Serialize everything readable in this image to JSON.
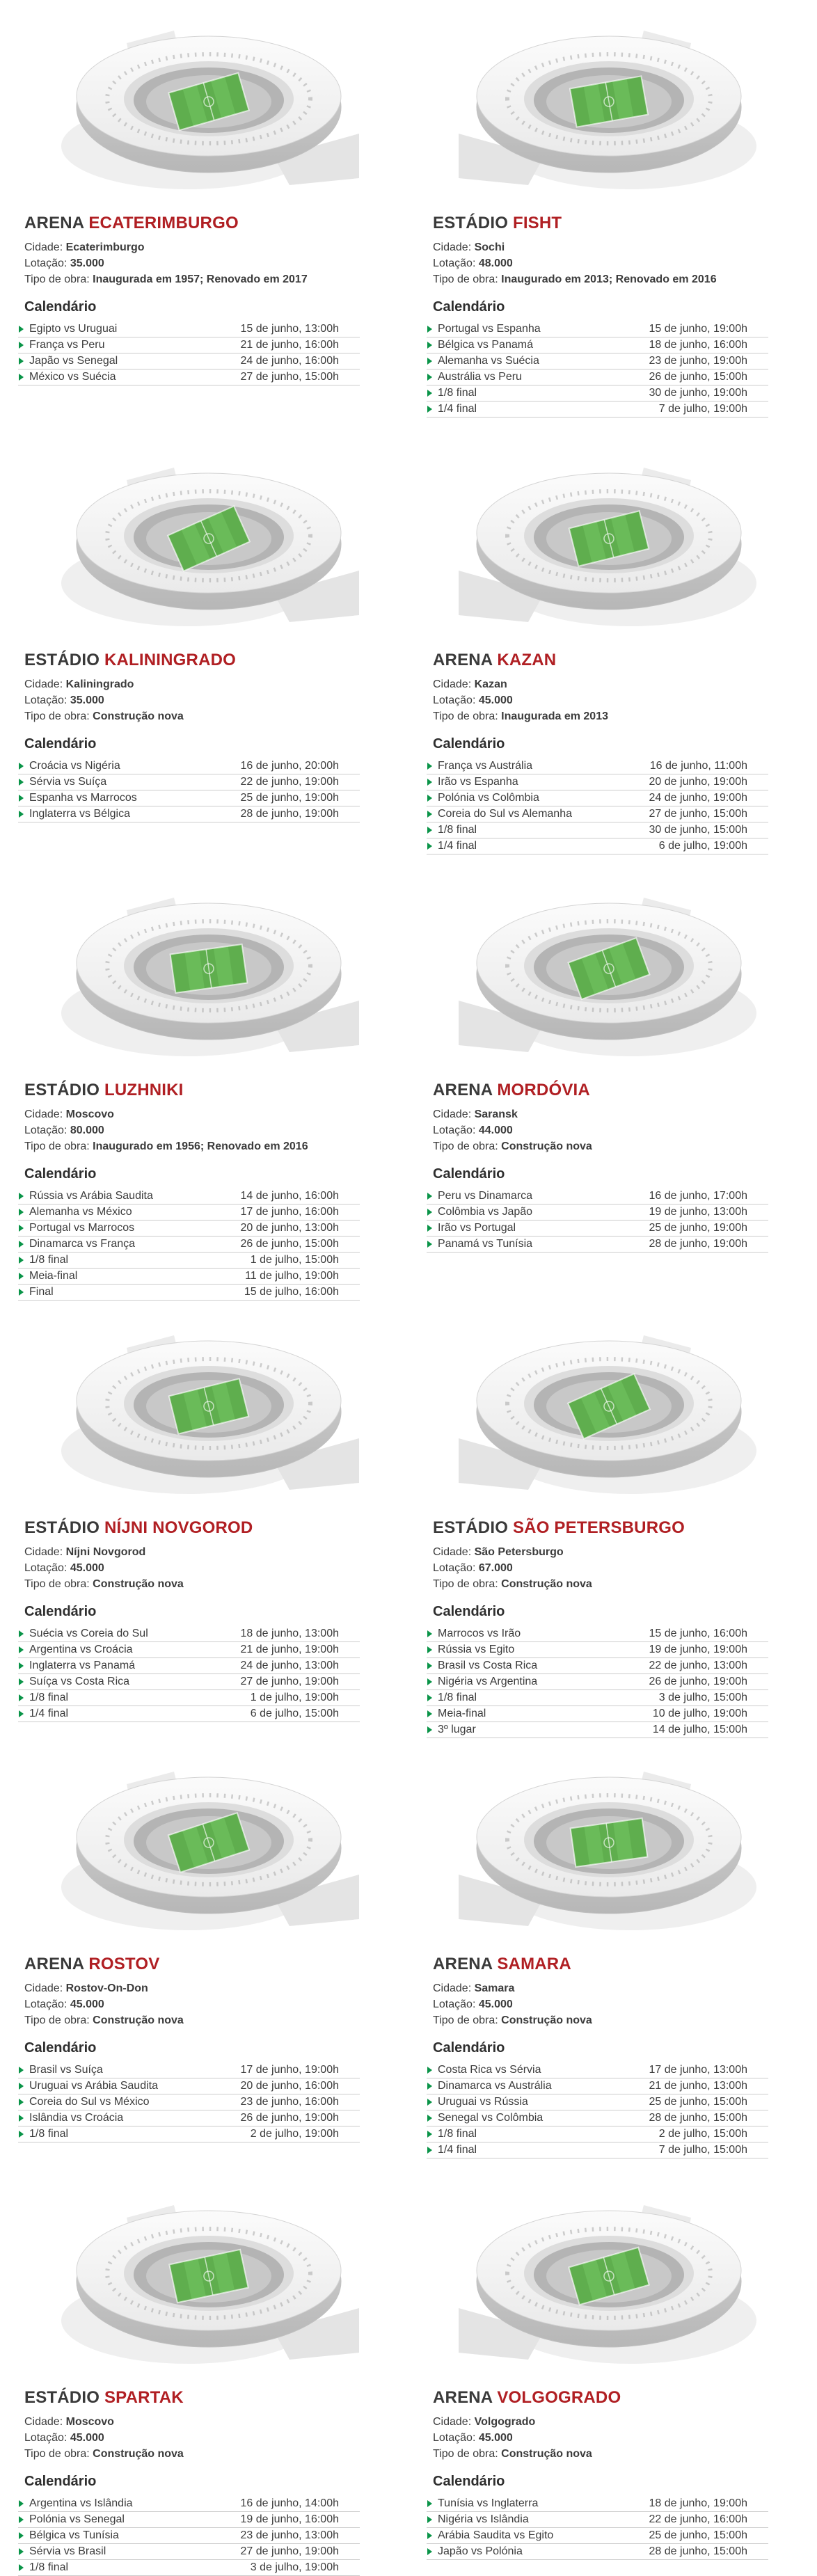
{
  "labels": {
    "city": "Cidade:",
    "capacity": "Lotação:",
    "construction": "Tipo de obra:",
    "calendar": "Calendário"
  },
  "colors": {
    "accent_red": "#b01f23",
    "title_dark": "#3a3a3a",
    "body_text": "#3c3c3c",
    "arrow_green": "#0a9448",
    "divider_gray": "#cccccc",
    "pitch_green": "#5fae4e",
    "stadium_gray": "#d9d9d9",
    "background": "#ffffff"
  },
  "stadiums": [
    {
      "prefix": "ARENA",
      "name": "ECATERIMBURGO",
      "city": "Ecaterimburgo",
      "capacity": "35.000",
      "construction": "Inaugurada em 1957; Renovado em 2017",
      "matches": [
        {
          "match": "Egipto vs Uruguai",
          "date": "15 de junho, 13:00h"
        },
        {
          "match": "França vs Peru",
          "date": "21 de junho, 16:00h"
        },
        {
          "match": "Japão vs Senegal",
          "date": "24 de junho, 16:00h"
        },
        {
          "match": "México vs Suécia",
          "date": "27 de junho, 15:00h"
        }
      ]
    },
    {
      "prefix": "ESTÁDIO",
      "name": "FISHT",
      "city": "Sochi",
      "capacity": "48.000",
      "construction": "Inaugurado em 2013; Renovado em 2016",
      "matches": [
        {
          "match": "Portugal vs Espanha",
          "date": "15 de junho, 19:00h"
        },
        {
          "match": "Bélgica vs Panamá",
          "date": "18 de junho, 16:00h"
        },
        {
          "match": "Alemanha vs Suécia",
          "date": "23 de junho, 19:00h"
        },
        {
          "match": "Austrália vs Peru",
          "date": "26 de junho, 15:00h"
        },
        {
          "match": "1/8 final",
          "date": "30 de junho, 19:00h"
        },
        {
          "match": "1/4 final",
          "date": "7 de julho, 19:00h"
        }
      ]
    },
    {
      "prefix": "ESTÁDIO",
      "name": "KALININGRADO",
      "city": "Kaliningrado",
      "capacity": "35.000",
      "construction": "Construção nova",
      "matches": [
        {
          "match": "Croácia vs Nigéria",
          "date": "16 de junho, 20:00h"
        },
        {
          "match": "Sérvia vs Suíça",
          "date": "22 de junho, 19:00h"
        },
        {
          "match": "Espanha vs Marrocos",
          "date": "25 de junho, 19:00h"
        },
        {
          "match": "Inglaterra vs Bélgica",
          "date": "28 de junho, 19:00h"
        }
      ]
    },
    {
      "prefix": "ARENA",
      "name": "KAZAN",
      "city": "Kazan",
      "capacity": "45.000",
      "construction": "Inaugurada em 2013",
      "matches": [
        {
          "match": "França vs Austrália",
          "date": "16 de junho, 11:00h"
        },
        {
          "match": "Irão vs Espanha",
          "date": "20 de junho, 19:00h"
        },
        {
          "match": "Polónia vs Colômbia",
          "date": "24 de junho, 19:00h"
        },
        {
          "match": "Coreia do Sul vs Alemanha",
          "date": "27 de junho, 15:00h"
        },
        {
          "match": "1/8 final",
          "date": "30 de junho, 15:00h"
        },
        {
          "match": "1/4 final",
          "date": "6 de julho, 19:00h"
        }
      ]
    },
    {
      "prefix": "ESTÁDIO",
      "name": "LUZHNIKI",
      "city": "Moscovo",
      "capacity": "80.000",
      "construction": "Inaugurado em 1956; Renovado em 2016",
      "matches": [
        {
          "match": "Rússia vs Arábia Saudita",
          "date": "14 de junho, 16:00h"
        },
        {
          "match": "Alemanha vs México",
          "date": "17 de junho, 16:00h"
        },
        {
          "match": "Portugal vs Marrocos",
          "date": "20 de junho, 13:00h"
        },
        {
          "match": "Dinamarca vs França",
          "date": "26 de junho, 15:00h"
        },
        {
          "match": "1/8 final",
          "date": "1 de julho, 15:00h"
        },
        {
          "match": "Meia-final",
          "date": "11 de julho, 19:00h"
        },
        {
          "match": "Final",
          "date": "15 de julho, 16:00h"
        }
      ]
    },
    {
      "prefix": "ARENA",
      "name": "MORDÓVIA",
      "city": "Saransk",
      "capacity": "44.000",
      "construction": "Construção nova",
      "matches": [
        {
          "match": "Peru vs Dinamarca",
          "date": "16 de junho, 17:00h"
        },
        {
          "match": "Colômbia vs Japão",
          "date": "19 de junho, 13:00h"
        },
        {
          "match": "Irão vs Portugal",
          "date": "25 de junho, 19:00h"
        },
        {
          "match": "Panamá vs Tunísia",
          "date": "28 de junho, 19:00h"
        }
      ]
    },
    {
      "prefix": "ESTÁDIO",
      "name": "NÍJNI NOVGOROD",
      "city": "Níjni Novgorod",
      "capacity": "45.000",
      "construction": "Construção nova",
      "matches": [
        {
          "match": "Suécia vs Coreia do Sul",
          "date": "18 de junho, 13:00h"
        },
        {
          "match": "Argentina vs Croácia",
          "date": "21 de junho, 19:00h"
        },
        {
          "match": "Inglaterra vs Panamá",
          "date": "24 de junho, 13:00h"
        },
        {
          "match": "Suíça vs Costa Rica",
          "date": "27 de junho, 19:00h"
        },
        {
          "match": "1/8 final",
          "date": "1 de julho, 19:00h"
        },
        {
          "match": "1/4 final",
          "date": "6 de julho, 15:00h"
        }
      ]
    },
    {
      "prefix": "ESTÁDIO",
      "name": "SÃO PETERSBURGO",
      "city": "São Petersburgo",
      "capacity": "67.000",
      "construction": "Construção nova",
      "matches": [
        {
          "match": "Marrocos vs Irão",
          "date": "15 de junho, 16:00h"
        },
        {
          "match": "Rússia vs Egito",
          "date": "19 de junho, 19:00h"
        },
        {
          "match": "Brasil vs Costa Rica",
          "date": "22 de junho, 13:00h"
        },
        {
          "match": "Nigéria vs Argentina",
          "date": "26 de junho, 19:00h"
        },
        {
          "match": "1/8 final",
          "date": "3 de julho, 15:00h"
        },
        {
          "match": "Meia-final",
          "date": "10 de julho, 19:00h"
        },
        {
          "match": "3º lugar",
          "date": "14 de julho, 15:00h"
        }
      ]
    },
    {
      "prefix": "ARENA",
      "name": "ROSTOV",
      "city": "Rostov-On-Don",
      "capacity": "45.000",
      "construction": "Construção nova",
      "matches": [
        {
          "match": "Brasil vs Suíça",
          "date": "17 de junho, 19:00h"
        },
        {
          "match": "Uruguai vs Arábia Saudita",
          "date": "20 de junho, 16:00h"
        },
        {
          "match": "Coreia do Sul vs México",
          "date": "23 de junho, 16:00h"
        },
        {
          "match": "Islândia vs Croácia",
          "date": "26 de junho, 19:00h"
        },
        {
          "match": "1/8 final",
          "date": "2 de julho, 19:00h"
        }
      ]
    },
    {
      "prefix": "ARENA",
      "name": "SAMARA",
      "city": "Samara",
      "capacity": "45.000",
      "construction": "Construção nova",
      "matches": [
        {
          "match": "Costa Rica vs Sérvia",
          "date": "17 de junho, 13:00h"
        },
        {
          "match": "Dinamarca vs Austrália",
          "date": "21 de junho, 13:00h"
        },
        {
          "match": "Uruguai vs Rússia",
          "date": "25 de junho, 15:00h"
        },
        {
          "match": "Senegal vs Colômbia",
          "date": "28 de junho, 15:00h"
        },
        {
          "match": "1/8 final",
          "date": "2 de julho, 15:00h"
        },
        {
          "match": "1/4 final",
          "date": "7 de julho, 15:00h"
        }
      ]
    },
    {
      "prefix": "ESTÁDIO",
      "name": "SPARTAK",
      "city": "Moscovo",
      "capacity": "45.000",
      "construction": "Construção nova",
      "matches": [
        {
          "match": "Argentina vs Islândia",
          "date": "16 de junho, 14:00h"
        },
        {
          "match": "Polónia vs Senegal",
          "date": "19 de junho, 16:00h"
        },
        {
          "match": "Bélgica vs Tunísia",
          "date": "23 de junho, 13:00h"
        },
        {
          "match": "Sérvia vs Brasil",
          "date": "27 de junho, 19:00h"
        },
        {
          "match": "1/8 final",
          "date": "3 de julho, 19:00h"
        }
      ]
    },
    {
      "prefix": "ARENA",
      "name": "VOLGOGRADO",
      "city": "Volgogrado",
      "capacity": "45.000",
      "construction": "Construção nova",
      "matches": [
        {
          "match": "Tunísia vs Inglaterra",
          "date": "18 de junho, 19:00h"
        },
        {
          "match": "Nigéria vs Islândia",
          "date": "22 de junho, 16:00h"
        },
        {
          "match": "Arábia Saudita vs Egito",
          "date": "25 de junho, 15:00h"
        },
        {
          "match": "Japão vs Polónia",
          "date": "28 de junho, 15:00h"
        }
      ]
    }
  ]
}
